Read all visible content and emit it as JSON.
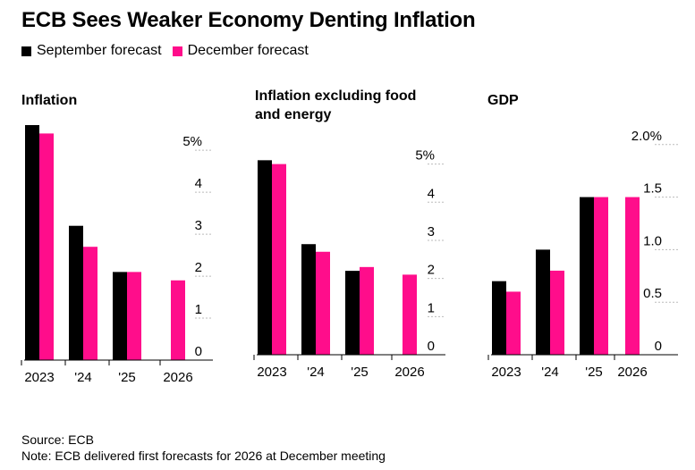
{
  "title": "ECB Sees Weaker Economy Denting Inflation",
  "legend": {
    "items": [
      {
        "label": "September forecast",
        "color": "#000000"
      },
      {
        "label": "December forecast",
        "color": "#ff0d8b"
      }
    ]
  },
  "chart_data": [
    {
      "type": "bar",
      "title": "Inflation",
      "categories": [
        "2023",
        "'24",
        "'25",
        "2026"
      ],
      "series": [
        {
          "name": "September forecast",
          "values": [
            5.6,
            3.2,
            2.1,
            null
          ]
        },
        {
          "name": "December forecast",
          "values": [
            5.4,
            2.7,
            2.1,
            1.9
          ]
        }
      ],
      "yticks": [
        0,
        1,
        2,
        3,
        4,
        5
      ],
      "ytick_labels": [
        "0",
        "1",
        "2",
        "3",
        "4",
        "5%"
      ],
      "ylim": [
        0,
        5.6
      ]
    },
    {
      "type": "bar",
      "title": "Inflation excluding food and energy",
      "categories": [
        "2023",
        "'24",
        "'25",
        "2026"
      ],
      "series": [
        {
          "name": "September forecast",
          "values": [
            5.1,
            2.9,
            2.2,
            null
          ]
        },
        {
          "name": "December forecast",
          "values": [
            5.0,
            2.7,
            2.3,
            2.1
          ]
        }
      ],
      "yticks": [
        0,
        1,
        2,
        3,
        4,
        5
      ],
      "ytick_labels": [
        "0",
        "1",
        "2",
        "3",
        "4",
        "5%"
      ],
      "ylim": [
        0,
        5.6
      ]
    },
    {
      "type": "bar",
      "title": "GDP",
      "categories": [
        "2023",
        "'24",
        "'25",
        "2026"
      ],
      "series": [
        {
          "name": "September forecast",
          "values": [
            0.7,
            1.0,
            1.5,
            null
          ]
        },
        {
          "name": "December forecast",
          "values": [
            0.6,
            0.8,
            1.5,
            1.5
          ]
        }
      ],
      "yticks": [
        0,
        0.5,
        1.0,
        1.5,
        2.0
      ],
      "ytick_labels": [
        "0",
        "0.5",
        "1.0",
        "1.5",
        "2.0%"
      ],
      "ylim": [
        0,
        2.1
      ]
    }
  ],
  "footer": {
    "source": "Source: ECB",
    "note": "Note: ECB delivered first forecasts for 2026 at December meeting"
  }
}
